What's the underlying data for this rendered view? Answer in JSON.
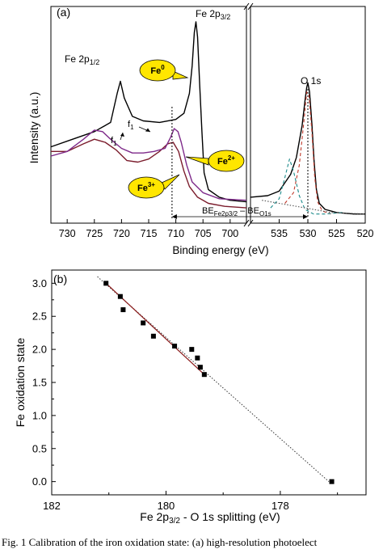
{
  "figure": {
    "caption": "Fig. 1  Calibration of the iron oxidation state: (a) high-resolution photoelect"
  },
  "chart_data": [
    {
      "type": "line",
      "panel_label": "(a)",
      "xlabel": "Binding energy (eV)",
      "ylabel": "Intensity (a.u.)",
      "broken_axis": true,
      "left_segment": {
        "xlim": [
          733,
          697
        ],
        "ticks": [
          730,
          725,
          720,
          715,
          710,
          705,
          700
        ]
      },
      "right_segment": {
        "xlim": [
          540,
          520
        ],
        "ticks": [
          535,
          530,
          525,
          520
        ]
      },
      "grid": false,
      "labels": {
        "fe2p12": "Fe 2p",
        "fe2p12_sub": "1/2",
        "fe2p32": "Fe 2p",
        "fe2p32_sub": "3/2",
        "o1s": "O 1s",
        "f1_a": "f",
        "f1_a_sub": "1",
        "f1_b": "f",
        "f1_b_sub": "1",
        "be_left": "BE",
        "be_left_sub": "Fe2p3/2",
        "be_dash": " – BE",
        "be_right_sub": "O1s"
      },
      "callouts": [
        {
          "base": "Fe",
          "sup": "0"
        },
        {
          "base": "Fe",
          "sup": "2+"
        },
        {
          "base": "Fe",
          "sup": "3+"
        }
      ],
      "series": [
        {
          "state": "Fe0",
          "color": "#000000",
          "points": [
            [
              733,
              0.5
            ],
            [
              729,
              0.55
            ],
            [
              725,
              0.6
            ],
            [
              722,
              0.66
            ],
            [
              720.8,
              0.85
            ],
            [
              720.2,
              0.93
            ],
            [
              719.5,
              0.82
            ],
            [
              718,
              0.7
            ],
            [
              716,
              0.67
            ],
            [
              713,
              0.66
            ],
            [
              710,
              0.68
            ],
            [
              708.5,
              0.72
            ],
            [
              707.5,
              0.85
            ],
            [
              707,
              1.03
            ],
            [
              706.6,
              1.25
            ],
            [
              706.3,
              1.32
            ],
            [
              706,
              1.22
            ],
            [
              705.6,
              0.9
            ],
            [
              705.2,
              0.6
            ],
            [
              704.8,
              0.33
            ],
            [
              704,
              0.22
            ],
            [
              702,
              0.17
            ],
            [
              700,
              0.15
            ],
            [
              697,
              0.14
            ]
          ]
        },
        {
          "state": "Fe2+",
          "color": "#7b1c2c",
          "points": [
            [
              733,
              0.47
            ],
            [
              730,
              0.47
            ],
            [
              727,
              0.52
            ],
            [
              725,
              0.55
            ],
            [
              723,
              0.53
            ],
            [
              721,
              0.48
            ],
            [
              719,
              0.41
            ],
            [
              717,
              0.4
            ],
            [
              715,
              0.42
            ],
            [
              713,
              0.47
            ],
            [
              711.5,
              0.52
            ],
            [
              710.5,
              0.53
            ],
            [
              709.5,
              0.47
            ],
            [
              708.5,
              0.34
            ],
            [
              707.5,
              0.24
            ],
            [
              706,
              0.17
            ],
            [
              704,
              0.13
            ],
            [
              701,
              0.11
            ],
            [
              697,
              0.1
            ]
          ]
        },
        {
          "state": "Fe3+",
          "color": "#7e2a8a",
          "points": [
            [
              733,
              0.44
            ],
            [
              730,
              0.47
            ],
            [
              727,
              0.55
            ],
            [
              725,
              0.61
            ],
            [
              723.5,
              0.6
            ],
            [
              722,
              0.55
            ],
            [
              720,
              0.49
            ],
            [
              718,
              0.46
            ],
            [
              716,
              0.46
            ],
            [
              714,
              0.47
            ],
            [
              712,
              0.49
            ],
            [
              711,
              0.56
            ],
            [
              710.3,
              0.62
            ],
            [
              709.6,
              0.6
            ],
            [
              709,
              0.53
            ],
            [
              708,
              0.38
            ],
            [
              707,
              0.27
            ],
            [
              705,
              0.2
            ],
            [
              702,
              0.16
            ],
            [
              697,
              0.15
            ]
          ]
        },
        {
          "state": "O1s",
          "color": "#000000",
          "points": [
            [
              540,
              0.17
            ],
            [
              537,
              0.18
            ],
            [
              535,
              0.21
            ],
            [
              533,
              0.32
            ],
            [
              532,
              0.43
            ],
            [
              531,
              0.64
            ],
            [
              530.5,
              0.8
            ],
            [
              530.2,
              0.89
            ],
            [
              530,
              0.92
            ],
            [
              529.7,
              0.86
            ],
            [
              529.3,
              0.65
            ],
            [
              528.9,
              0.4
            ],
            [
              528.5,
              0.22
            ],
            [
              528,
              0.13
            ],
            [
              527,
              0.09
            ],
            [
              525,
              0.07
            ],
            [
              522,
              0.06
            ],
            [
              520,
              0.06
            ]
          ]
        },
        {
          "state": "O1s-fit-red",
          "color": "#c0392b",
          "style": "dashed",
          "points": [
            [
              534,
              0.13
            ],
            [
              532.5,
              0.2
            ],
            [
              531.5,
              0.38
            ],
            [
              530.7,
              0.66
            ],
            [
              530.2,
              0.86
            ],
            [
              529.8,
              0.84
            ],
            [
              529.3,
              0.6
            ],
            [
              528.8,
              0.3
            ],
            [
              528.3,
              0.14
            ],
            [
              527.5,
              0.08
            ],
            [
              526,
              0.06
            ]
          ]
        },
        {
          "state": "O1s-fit-teal",
          "color": "#1a8a8a",
          "style": "dashed",
          "points": [
            [
              536.5,
              0.1
            ],
            [
              535,
              0.16
            ],
            [
              534,
              0.3
            ],
            [
              533.2,
              0.42
            ],
            [
              532.5,
              0.34
            ],
            [
              531.5,
              0.18
            ],
            [
              530.5,
              0.09
            ],
            [
              529,
              0.06
            ],
            [
              527,
              0.06
            ],
            [
              524,
              0.07
            ]
          ]
        },
        {
          "state": "O1s-background",
          "color": "#555555",
          "style": "dotted",
          "points": [
            [
              538,
              0.15
            ],
            [
              535,
              0.13
            ],
            [
              532,
              0.11
            ],
            [
              529,
              0.09
            ],
            [
              526,
              0.07
            ],
            [
              523,
              0.065
            ],
            [
              520,
              0.06
            ]
          ]
        }
      ]
    },
    {
      "type": "scatter",
      "panel_label": "(b)",
      "xlabel": "Fe 2p3/2 - O 1s splitting (eV)",
      "xlabel_parts": {
        "main": "Fe 2p",
        "sub": "3/2",
        "rest": " - O 1s  splitting (eV)"
      },
      "ylabel": "Fe oxidation state",
      "xlim": [
        182,
        176.5
      ],
      "ylim": [
        -0.2,
        3.2
      ],
      "xticks": [
        182,
        180,
        178
      ],
      "yticks": [
        0.0,
        0.5,
        1.0,
        1.5,
        2.0,
        2.5,
        3.0
      ],
      "ytick_labels": [
        "0.0",
        "0.5",
        "1.0",
        "1.5",
        "2.0",
        "2.5",
        "3.0"
      ],
      "xtick_labels": [
        "182",
        "180",
        "178"
      ],
      "points": [
        {
          "x": 181.05,
          "y": 3.0
        },
        {
          "x": 180.8,
          "y": 2.8
        },
        {
          "x": 180.75,
          "y": 2.6
        },
        {
          "x": 180.4,
          "y": 2.4
        },
        {
          "x": 180.22,
          "y": 2.2
        },
        {
          "x": 179.85,
          "y": 2.05
        },
        {
          "x": 179.55,
          "y": 2.0
        },
        {
          "x": 179.45,
          "y": 1.87
        },
        {
          "x": 179.4,
          "y": 1.73
        },
        {
          "x": 179.33,
          "y": 1.62
        },
        {
          "x": 177.1,
          "y": 0.0
        }
      ],
      "fit_solid": {
        "color": "#8b1a1a",
        "x": [
          181.05,
          179.33
        ],
        "y": [
          3.0,
          1.62
        ]
      },
      "fit_dotted": {
        "color": "#333333",
        "x": [
          181.2,
          177.15
        ],
        "y": [
          3.1,
          0.0
        ]
      }
    }
  ]
}
